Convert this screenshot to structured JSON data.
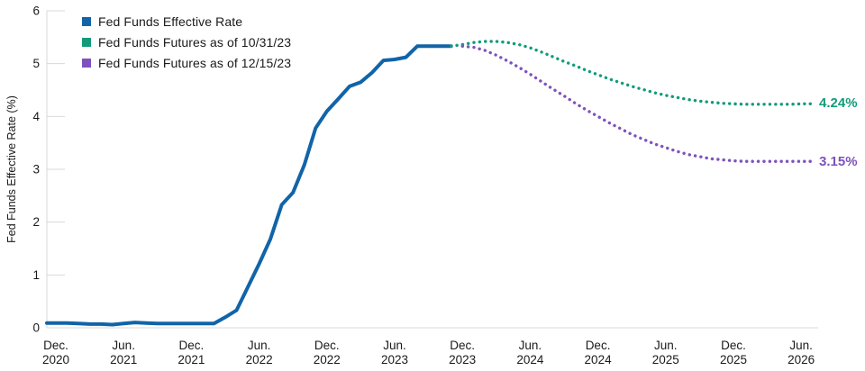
{
  "chart_data": {
    "type": "line",
    "title": "",
    "ylabel": "Fed Funds Effective Rate (%)",
    "ylim": [
      0,
      6
    ],
    "yticks": [
      0,
      1,
      2,
      3,
      4,
      5,
      6
    ],
    "x_unit": "months since Dec 2020",
    "xticks": [
      {
        "month": 0,
        "line1": "Dec.",
        "line2": "2020"
      },
      {
        "month": 6,
        "line1": "Jun.",
        "line2": "2021"
      },
      {
        "month": 12,
        "line1": "Dec.",
        "line2": "2021"
      },
      {
        "month": 18,
        "line1": "Jun.",
        "line2": "2022"
      },
      {
        "month": 24,
        "line1": "Dec.",
        "line2": "2022"
      },
      {
        "month": 30,
        "line1": "Jun.",
        "line2": "2023"
      },
      {
        "month": 36,
        "line1": "Dec.",
        "line2": "2023"
      },
      {
        "month": 42,
        "line1": "Jun.",
        "line2": "2024"
      },
      {
        "month": 48,
        "line1": "Dec.",
        "line2": "2024"
      },
      {
        "month": 54,
        "line1": "Jun.",
        "line2": "2025"
      },
      {
        "month": 60,
        "line1": "Dec.",
        "line2": "2025"
      },
      {
        "month": 66,
        "line1": "Jun.",
        "line2": "2026"
      }
    ],
    "grid": false,
    "legend_position": "top-left",
    "axis_color": "#d8d8d8",
    "text_color": "#1a1a1a",
    "series": [
      {
        "name": "Fed Funds Effective Rate",
        "color": "#1164a8",
        "style": "solid",
        "start_month": 0,
        "extend_to_axis": true,
        "values": [
          0.09,
          0.09,
          0.08,
          0.07,
          0.07,
          0.06,
          0.08,
          0.1,
          0.09,
          0.08,
          0.08,
          0.08,
          0.08,
          0.08,
          0.08,
          0.2,
          0.33,
          0.77,
          1.21,
          1.68,
          2.33,
          2.56,
          3.08,
          3.78,
          4.1,
          4.33,
          4.57,
          4.65,
          4.83,
          5.06,
          5.08,
          5.12,
          5.33,
          5.33,
          5.33,
          5.33
        ]
      },
      {
        "name": "Fed Funds Futures as of 10/31/23",
        "color": "#129b79",
        "style": "dotted",
        "start_month": 35,
        "end_label": "4.24%",
        "values": [
          5.33,
          5.36,
          5.4,
          5.42,
          5.42,
          5.4,
          5.36,
          5.3,
          5.22,
          5.13,
          5.04,
          4.96,
          4.87,
          4.79,
          4.71,
          4.64,
          4.57,
          4.51,
          4.45,
          4.4,
          4.36,
          4.32,
          4.29,
          4.27,
          4.25,
          4.24,
          4.23,
          4.23,
          4.23,
          4.23,
          4.23,
          4.24,
          4.24
        ]
      },
      {
        "name": "Fed Funds Futures as of 12/15/23",
        "color": "#7e52bc",
        "style": "dotted",
        "start_month": 36,
        "end_label": "3.15%",
        "values": [
          5.33,
          5.31,
          5.25,
          5.16,
          5.05,
          4.93,
          4.8,
          4.66,
          4.52,
          4.39,
          4.25,
          4.12,
          4.0,
          3.88,
          3.77,
          3.66,
          3.57,
          3.48,
          3.41,
          3.34,
          3.28,
          3.24,
          3.2,
          3.18,
          3.16,
          3.15,
          3.15,
          3.15,
          3.15,
          3.15,
          3.15,
          3.15
        ]
      }
    ]
  }
}
